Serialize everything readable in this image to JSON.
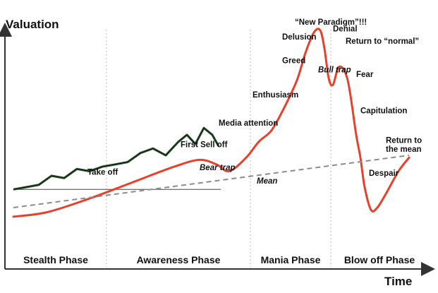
{
  "chart_data": {
    "type": "line",
    "title": "",
    "xlabel": "Time",
    "ylabel": "Valuation",
    "grid": false,
    "legend": "none",
    "colors": {
      "bubble_curve": "#e8402a",
      "mean_line": "#8c8c8c",
      "market_price": "#2e5b2e",
      "divider": "#bbbbbb",
      "axis": "#333333"
    },
    "x_range": [
      0,
      100
    ],
    "y_range": [
      0,
      100
    ],
    "phases": [
      {
        "name": "Stealth Phase",
        "start": 0,
        "end": 24
      },
      {
        "name": "Awareness Phase",
        "start": 24,
        "end": 58
      },
      {
        "name": "Mania Phase",
        "start": 58,
        "end": 77
      },
      {
        "name": "Blow off Phase",
        "start": 77,
        "end": 100
      }
    ],
    "series": [
      {
        "key": "bubble",
        "x": [
          2,
          10,
          20,
          30,
          40,
          46,
          50,
          53,
          57,
          60,
          63,
          66,
          69,
          71,
          73,
          74.5,
          75.5,
          76.5,
          77.5,
          79,
          81,
          83,
          84,
          85,
          86.5,
          88,
          90,
          93,
          95.5
        ],
        "y": [
          14,
          16,
          22,
          29,
          36,
          39,
          37,
          34,
          40,
          47,
          52,
          62,
          74,
          86,
          95,
          96,
          88,
          75,
          72,
          80,
          74,
          50,
          40,
          27,
          17,
          18,
          24,
          34,
          40
        ]
      },
      {
        "key": "mean",
        "x": [
          2,
          95.5
        ],
        "y": [
          18,
          41
        ]
      },
      {
        "key": "market",
        "x": [
          2,
          8,
          11,
          14,
          17,
          20,
          23,
          26,
          29,
          32,
          35,
          38,
          41,
          43,
          45,
          47,
          49,
          50.5
        ],
        "y": [
          26,
          28,
          32,
          31,
          35,
          34,
          36,
          37,
          38,
          42,
          44,
          41,
          47,
          50,
          46,
          53,
          50,
          45
        ]
      }
    ],
    "baseline": {
      "x": [
        2,
        51
      ],
      "y": [
        26,
        26
      ]
    },
    "annotations": [
      {
        "text": "Take off",
        "x": 19.5,
        "y": 32.5,
        "style": "bold"
      },
      {
        "text": "First Sell off",
        "x": 41.5,
        "y": 44.5,
        "style": "bold"
      },
      {
        "text": "Bear trap",
        "x": 46,
        "y": 34.5,
        "style": "bold-italic"
      },
      {
        "text": "Mean",
        "x": 59.5,
        "y": 28.5,
        "style": "bold-italic"
      },
      {
        "text": "Media attention",
        "x": 50.5,
        "y": 54,
        "style": "bold"
      },
      {
        "text": "Enthusiasm",
        "x": 58.5,
        "y": 66.5,
        "style": "bold"
      },
      {
        "text": "Greed",
        "x": 65.5,
        "y": 81.5,
        "style": "bold"
      },
      {
        "text": "Delusion",
        "x": 65.5,
        "y": 92,
        "style": "bold"
      },
      {
        "text": "“New Paradigm”!!!",
        "x": 68.5,
        "y": 98.5,
        "style": "bold"
      },
      {
        "text": "Denial",
        "x": 77.5,
        "y": 95.5,
        "style": "bold"
      },
      {
        "text": "Return to “normal”",
        "x": 80.5,
        "y": 90,
        "style": "bold"
      },
      {
        "text": "Bull trap",
        "x": 74,
        "y": 77.5,
        "style": "bold-italic"
      },
      {
        "text": "Fear",
        "x": 83,
        "y": 75.5,
        "style": "bold"
      },
      {
        "text": "Capitulation",
        "x": 84,
        "y": 59.5,
        "style": "bold"
      },
      {
        "text": "Return to",
        "x": 90,
        "y": 46.5,
        "style": "bold"
      },
      {
        "text": "the mean",
        "x": 90,
        "y": 42.5,
        "style": "bold"
      },
      {
        "text": "Despair",
        "x": 86,
        "y": 32,
        "style": "bold"
      }
    ]
  }
}
